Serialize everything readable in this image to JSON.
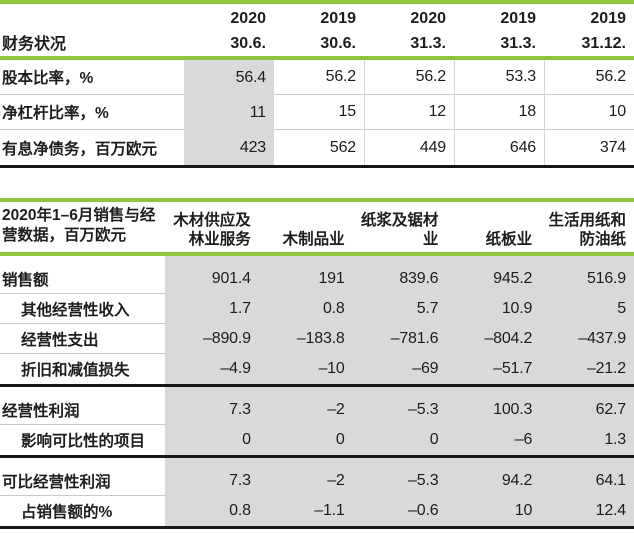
{
  "theme": {
    "accent_green": "#8cc63e",
    "column_gray": "#d9d9d9",
    "thin_line_gray": "#c9c9c9",
    "heavy_line_black": "#161616"
  },
  "financial_table": {
    "title": "财务状况",
    "columns": [
      {
        "year": "2020",
        "date": "30.6."
      },
      {
        "year": "2019",
        "date": "30.6."
      },
      {
        "year": "2020",
        "date": "31.3."
      },
      {
        "year": "2019",
        "date": "31.3."
      },
      {
        "year": "2019",
        "date": "31.12."
      }
    ],
    "rows": [
      {
        "label": "股本比率，%",
        "values": [
          "56.4",
          "56.2",
          "56.2",
          "53.3",
          "56.2"
        ]
      },
      {
        "label": "净杠杆比率，%",
        "values": [
          "11",
          "15",
          "12",
          "18",
          "10"
        ]
      },
      {
        "label": "有息净债务，百万欧元",
        "values": [
          "423",
          "562",
          "449",
          "646",
          "374"
        ]
      }
    ],
    "highlighted_column_index": 0
  },
  "sales_table": {
    "title_line1": "2020年1–6月销售与经",
    "title_line2": "营数据，百万欧元",
    "columns": [
      {
        "lines": [
          "木材供应及",
          "林业服务"
        ]
      },
      {
        "lines": [
          "木制品业"
        ]
      },
      {
        "lines": [
          "纸浆及锯材",
          "业"
        ]
      },
      {
        "lines": [
          "纸板业"
        ]
      },
      {
        "lines": [
          "生活用纸和",
          "防油纸"
        ]
      }
    ],
    "sections": [
      {
        "rows": [
          {
            "label": "销售额",
            "indent": false,
            "values": [
              "901.4",
              "191",
              "839.6",
              "945.2",
              "516.9"
            ]
          },
          {
            "label": "其他经营性收入",
            "indent": true,
            "values": [
              "1.7",
              "0.8",
              "5.7",
              "10.9",
              "5"
            ]
          },
          {
            "label": "经营性支出",
            "indent": true,
            "values": [
              "–890.9",
              "–183.8",
              "–781.6",
              "–804.2",
              "–437.9"
            ]
          },
          {
            "label": "折旧和减值损失",
            "indent": true,
            "values": [
              "–4.9",
              "–10",
              "–69",
              "–51.7",
              "–21.2"
            ]
          }
        ]
      },
      {
        "rows": [
          {
            "label": "经营性利润",
            "indent": false,
            "values": [
              "7.3",
              "–2",
              "–5.3",
              "100.3",
              "62.7"
            ]
          },
          {
            "label": "影响可比性的项目",
            "indent": true,
            "values": [
              "0",
              "0",
              "0",
              "–6",
              "1.3"
            ]
          }
        ]
      },
      {
        "rows": [
          {
            "label": "可比经营性利润",
            "indent": false,
            "values": [
              "7.3",
              "–2",
              "–5.3",
              "94.2",
              "64.1"
            ]
          },
          {
            "label": "占销售额的%",
            "indent": true,
            "values": [
              "0.8",
              "–1.1",
              "–0.6",
              "10",
              "12.4"
            ]
          }
        ]
      }
    ]
  }
}
